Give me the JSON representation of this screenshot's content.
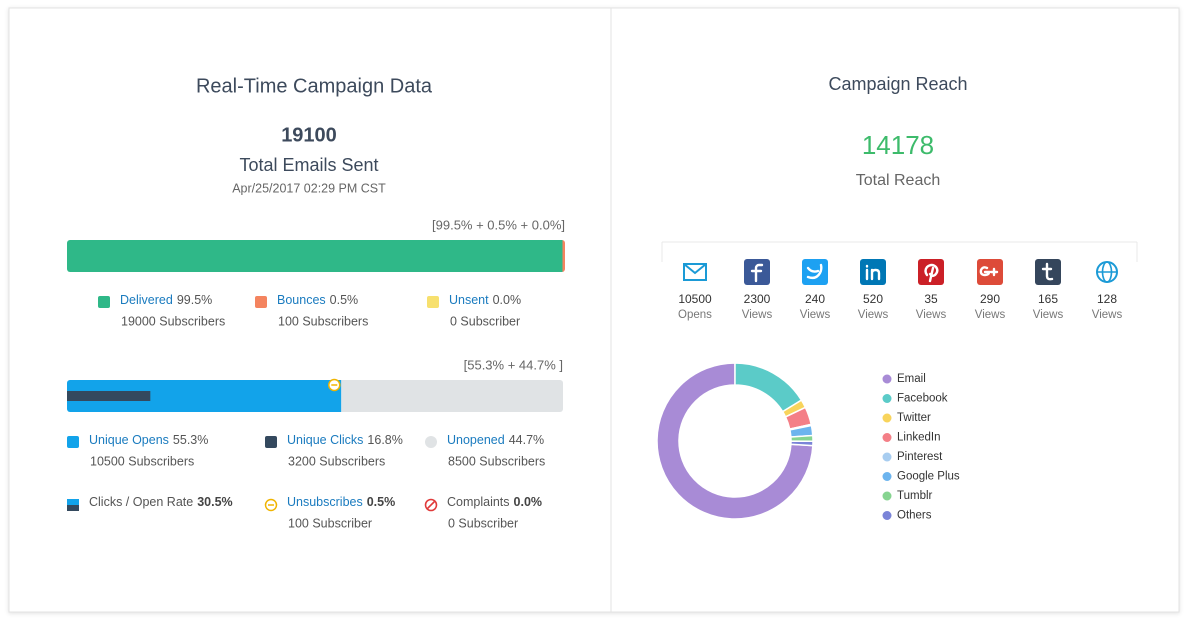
{
  "left": {
    "title": "Real-Time Campaign Data",
    "total": 19100,
    "total_label": "Total Emails Sent",
    "timestamp": "Apr/25/2017 02:29 PM CST",
    "delivery": {
      "summary": "[99.5% + 0.5% + 0.0%]",
      "items": [
        {
          "name": "Delivered",
          "value": 99.5,
          "label": "99.5%",
          "subscribers": "19000 Subscribers",
          "color": "#2fb888"
        },
        {
          "name": "Bounces",
          "value": 0.5,
          "label": "0.5%",
          "subscribers": "100 Subscribers",
          "color": "#f4845f"
        },
        {
          "name": "Unsent",
          "value": 0.0,
          "label": "0.0%",
          "subscribers": "0 Subscriber",
          "color": "#f7e06e"
        }
      ]
    },
    "engagement": {
      "summary": "[55.3% + 44.7% ]",
      "items": [
        {
          "name": "Unique Opens",
          "value": 55.3,
          "label": "55.3%",
          "subscribers": "10500 Subscribers",
          "color": "#12a3ea"
        },
        {
          "name": "Unique Clicks",
          "value": 16.8,
          "label": "16.8%",
          "subscribers": "3200 Subscribers",
          "color": "#34495e"
        },
        {
          "name": "Unopened",
          "value": 44.7,
          "label": "44.7%",
          "subscribers": "8500 Subscribers",
          "color": "#e0e3e5"
        }
      ],
      "extra": [
        {
          "name": "Clicks / Open Rate",
          "value": 30.5,
          "label": "30.5%"
        },
        {
          "name": "Unsubscribes",
          "value": 0.5,
          "label": "0.5%",
          "subscribers": "100 Subscriber"
        },
        {
          "name": "Complaints",
          "value": 0.0,
          "label": "0.0%",
          "subscribers": "0 Subscriber"
        }
      ]
    }
  },
  "right": {
    "title": "Campaign Reach",
    "total": 14178,
    "total_label": "Total Reach",
    "channels": [
      {
        "name": "Email",
        "count": 10500,
        "unit": "Opens",
        "color": "#a88bd6",
        "icon_color": "#1b9ad6"
      },
      {
        "name": "Facebook",
        "count": 2300,
        "unit": "Views",
        "color": "#5bcbc8",
        "icon_color": "#3b5998"
      },
      {
        "name": "Twitter",
        "count": 240,
        "unit": "Views",
        "color": "#f8d45c",
        "icon_color": "#1da1f2"
      },
      {
        "name": "LinkedIn",
        "count": 520,
        "unit": "Views",
        "color": "#f47f87",
        "icon_color": "#0077b5"
      },
      {
        "name": "Pinterest",
        "count": 35,
        "unit": "Views",
        "color": "#a8cdf0",
        "icon_color": "#cb2027"
      },
      {
        "name": "Google Plus",
        "count": 290,
        "unit": "Views",
        "color": "#6cb4ee",
        "icon_color": "#dd4b39"
      },
      {
        "name": "Tumblr",
        "count": 165,
        "unit": "Views",
        "color": "#86d490",
        "icon_color": "#35465c"
      },
      {
        "name": "Others",
        "count": 128,
        "unit": "Views",
        "color": "#7a84d8",
        "icon_color": "#1b9ad6"
      }
    ]
  }
}
